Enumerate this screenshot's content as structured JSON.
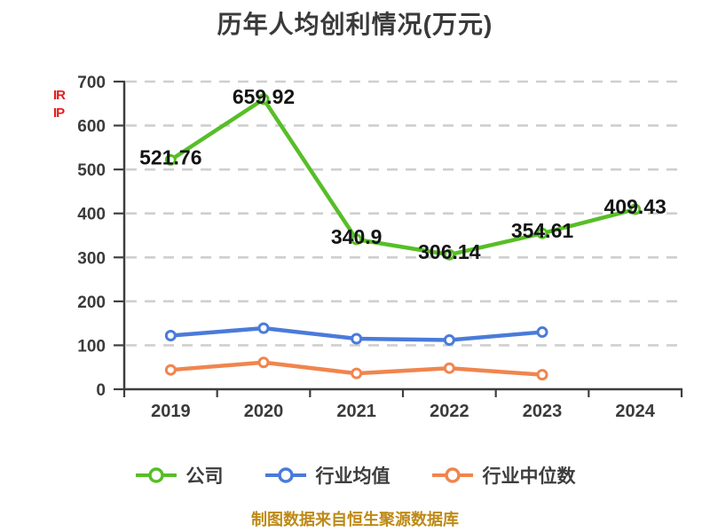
{
  "title": "历年人均创利情况(万元)",
  "watermark": {
    "lines": [
      "IR",
      "IP"
    ],
    "color": "#E11E1E"
  },
  "chart_data": {
    "type": "line",
    "title": "历年人均创利情况(万元)",
    "x": [
      "2019",
      "2020",
      "2021",
      "2022",
      "2023",
      "2024"
    ],
    "ylim": [
      0,
      700
    ],
    "yticks": [
      0,
      100,
      200,
      300,
      400,
      500,
      600,
      700
    ],
    "grid": "dashed-horizontal",
    "legend_position": "bottom",
    "axis_color": "#3E3E3E",
    "grid_color": "#CFCFCF",
    "tick_label_color": "#3B3B3B",
    "data_label_color": "#141414",
    "series": [
      {
        "name": "公司",
        "color": "#57BE27",
        "values": [
          521.76,
          659.92,
          340.9,
          306.14,
          354.61,
          409.43
        ],
        "labels": [
          "521.76",
          "659.92",
          "340.9",
          "306.14",
          "354.61",
          "409.43"
        ],
        "show_labels": true
      },
      {
        "name": "行业均值",
        "color": "#4A7BD9",
        "values": [
          122,
          139,
          115,
          112,
          130
        ],
        "labels": [],
        "show_labels": false
      },
      {
        "name": "行业中位数",
        "color": "#F0854E",
        "values": [
          44,
          61,
          36,
          48,
          33
        ],
        "labels": [],
        "show_labels": false
      }
    ]
  },
  "legend": {
    "items": [
      "公司",
      "行业均值",
      "行业中位数"
    ]
  },
  "footer": {
    "text": "制图数据来自恒生聚源数据库",
    "color": "#BE8A16"
  }
}
